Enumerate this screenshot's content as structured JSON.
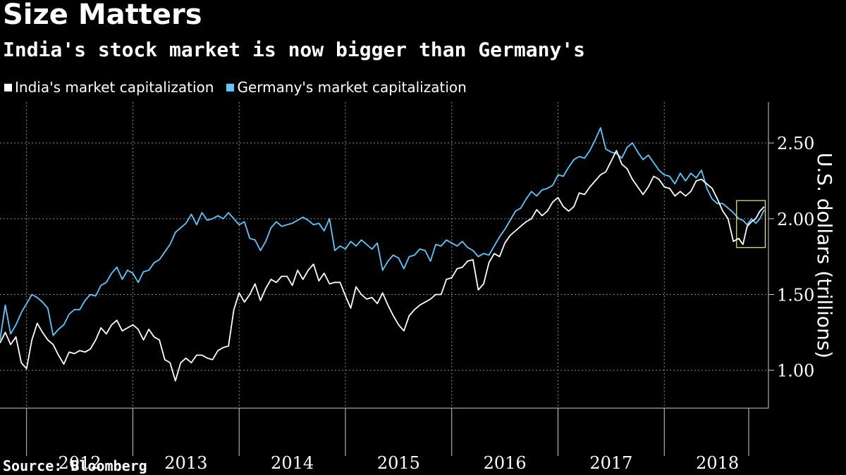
{
  "chart_data": {
    "type": "line",
    "title": "Size Matters",
    "subtitle": "India's stock market is now bigger than Germany's",
    "ylabel": "U.S. dollars (trillions)",
    "xlabel": "",
    "source": "Source: Bloomberg",
    "x_tick_labels": [
      "2012",
      "2013",
      "2014",
      "2015",
      "2016",
      "2017",
      "2018"
    ],
    "y_ticks": [
      1.0,
      1.5,
      2.0,
      2.5
    ],
    "y_tick_labels": [
      "1.00",
      "1.50",
      "2.00",
      "2.50"
    ],
    "ylim": [
      0.75,
      2.77
    ],
    "xlim": [
      2011.75,
      2018.98
    ],
    "grid": true,
    "legend_position": "top-left",
    "highlight_box": {
      "x": [
        2018.68,
        2018.95
      ],
      "y": [
        1.81,
        2.12
      ],
      "color": "#f1f08a"
    },
    "series": [
      {
        "name": "India's market capitalization",
        "color": "#ffffff",
        "x": [
          2011.75,
          2011.8,
          2011.85,
          2011.9,
          2011.95,
          2012.0,
          2012.05,
          2012.1,
          2012.15,
          2012.2,
          2012.25,
          2012.3,
          2012.35,
          2012.4,
          2012.45,
          2012.5,
          2012.55,
          2012.6,
          2012.65,
          2012.7,
          2012.75,
          2012.8,
          2012.85,
          2012.9,
          2012.95,
          2013.0,
          2013.05,
          2013.1,
          2013.15,
          2013.2,
          2013.25,
          2013.3,
          2013.35,
          2013.4,
          2013.45,
          2013.5,
          2013.55,
          2013.6,
          2013.65,
          2013.7,
          2013.75,
          2013.8,
          2013.85,
          2013.9,
          2013.95,
          2014.0,
          2014.05,
          2014.1,
          2014.15,
          2014.2,
          2014.25,
          2014.3,
          2014.35,
          2014.4,
          2014.45,
          2014.5,
          2014.55,
          2014.6,
          2014.65,
          2014.7,
          2014.75,
          2014.8,
          2014.85,
          2014.9,
          2014.95,
          2015.0,
          2015.05,
          2015.1,
          2015.15,
          2015.2,
          2015.25,
          2015.3,
          2015.35,
          2015.4,
          2015.45,
          2015.5,
          2015.55,
          2015.6,
          2015.65,
          2015.7,
          2015.75,
          2015.8,
          2015.85,
          2015.9,
          2015.95,
          2016.0,
          2016.05,
          2016.1,
          2016.15,
          2016.2,
          2016.25,
          2016.3,
          2016.35,
          2016.4,
          2016.45,
          2016.5,
          2016.55,
          2016.6,
          2016.65,
          2016.7,
          2016.75,
          2016.8,
          2016.85,
          2016.9,
          2016.95,
          2017.0,
          2017.05,
          2017.1,
          2017.15,
          2017.2,
          2017.25,
          2017.3,
          2017.35,
          2017.4,
          2017.45,
          2017.5,
          2017.55,
          2017.6,
          2017.65,
          2017.7,
          2017.75,
          2017.8,
          2017.85,
          2017.9,
          2017.95,
          2018.0,
          2018.05,
          2018.1,
          2018.15,
          2018.2,
          2018.25,
          2018.3,
          2018.35,
          2018.4,
          2018.45,
          2018.5,
          2018.55,
          2018.6,
          2018.65,
          2018.7,
          2018.74,
          2018.78,
          2018.82,
          2018.86,
          2018.9,
          2018.94
        ],
        "values": [
          1.18,
          1.25,
          1.17,
          1.22,
          1.05,
          1.01,
          1.2,
          1.31,
          1.25,
          1.2,
          1.17,
          1.1,
          1.04,
          1.12,
          1.11,
          1.13,
          1.12,
          1.14,
          1.2,
          1.28,
          1.24,
          1.3,
          1.33,
          1.26,
          1.28,
          1.3,
          1.27,
          1.2,
          1.27,
          1.22,
          1.2,
          1.07,
          1.05,
          0.93,
          1.05,
          1.08,
          1.05,
          1.1,
          1.1,
          1.08,
          1.07,
          1.13,
          1.15,
          1.16,
          1.4,
          1.51,
          1.45,
          1.5,
          1.57,
          1.46,
          1.54,
          1.6,
          1.58,
          1.62,
          1.62,
          1.56,
          1.66,
          1.6,
          1.66,
          1.7,
          1.59,
          1.64,
          1.57,
          1.58,
          1.58,
          1.49,
          1.41,
          1.55,
          1.5,
          1.47,
          1.48,
          1.44,
          1.51,
          1.43,
          1.36,
          1.3,
          1.26,
          1.36,
          1.4,
          1.43,
          1.45,
          1.47,
          1.5,
          1.5,
          1.6,
          1.61,
          1.67,
          1.68,
          1.72,
          1.73,
          1.53,
          1.57,
          1.71,
          1.77,
          1.75,
          1.84,
          1.89,
          1.92,
          1.95,
          1.98,
          2.0,
          2.06,
          2.02,
          2.05,
          2.11,
          2.14,
          2.08,
          2.05,
          2.08,
          2.17,
          2.16,
          2.21,
          2.25,
          2.29,
          2.31,
          2.38,
          2.45,
          2.36,
          2.33,
          2.26,
          2.21,
          2.16,
          2.21,
          2.28,
          2.26,
          2.21,
          2.2,
          2.15,
          2.18,
          2.15,
          2.18,
          2.25,
          2.26,
          2.23,
          2.2,
          2.13,
          2.05,
          2.0,
          1.85,
          1.87,
          1.83,
          1.95,
          1.98,
          2.0,
          2.05,
          2.08
        ]
      },
      {
        "name": "Germany's market capitalization",
        "color": "#5bc8ff",
        "x": [
          2011.75,
          2011.8,
          2011.85,
          2011.9,
          2011.95,
          2012.0,
          2012.05,
          2012.1,
          2012.15,
          2012.2,
          2012.25,
          2012.3,
          2012.35,
          2012.4,
          2012.45,
          2012.5,
          2012.55,
          2012.6,
          2012.65,
          2012.7,
          2012.75,
          2012.8,
          2012.85,
          2012.9,
          2012.95,
          2013.0,
          2013.05,
          2013.1,
          2013.15,
          2013.2,
          2013.25,
          2013.3,
          2013.35,
          2013.4,
          2013.45,
          2013.5,
          2013.55,
          2013.6,
          2013.65,
          2013.7,
          2013.75,
          2013.8,
          2013.85,
          2013.9,
          2013.95,
          2014.0,
          2014.05,
          2014.1,
          2014.15,
          2014.2,
          2014.25,
          2014.3,
          2014.35,
          2014.4,
          2014.45,
          2014.5,
          2014.55,
          2014.6,
          2014.65,
          2014.7,
          2014.75,
          2014.8,
          2014.85,
          2014.9,
          2014.95,
          2015.0,
          2015.05,
          2015.1,
          2015.15,
          2015.2,
          2015.25,
          2015.3,
          2015.35,
          2015.4,
          2015.45,
          2015.5,
          2015.55,
          2015.6,
          2015.65,
          2015.7,
          2015.75,
          2015.8,
          2015.85,
          2015.9,
          2015.95,
          2016.0,
          2016.05,
          2016.1,
          2016.15,
          2016.2,
          2016.25,
          2016.3,
          2016.35,
          2016.4,
          2016.45,
          2016.5,
          2016.55,
          2016.6,
          2016.65,
          2016.7,
          2016.75,
          2016.8,
          2016.85,
          2016.9,
          2016.95,
          2017.0,
          2017.05,
          2017.1,
          2017.15,
          2017.2,
          2017.25,
          2017.3,
          2017.35,
          2017.4,
          2017.45,
          2017.5,
          2017.55,
          2017.6,
          2017.65,
          2017.7,
          2017.75,
          2017.8,
          2017.85,
          2017.9,
          2017.95,
          2018.0,
          2018.05,
          2018.1,
          2018.15,
          2018.2,
          2018.25,
          2018.3,
          2018.35,
          2018.4,
          2018.45,
          2018.5,
          2018.55,
          2018.6,
          2018.65,
          2018.7,
          2018.74,
          2018.78,
          2018.82,
          2018.86,
          2018.9,
          2018.94
        ],
        "values": [
          1.2,
          1.43,
          1.24,
          1.3,
          1.38,
          1.44,
          1.5,
          1.48,
          1.45,
          1.41,
          1.23,
          1.27,
          1.3,
          1.37,
          1.4,
          1.4,
          1.46,
          1.5,
          1.49,
          1.56,
          1.58,
          1.64,
          1.68,
          1.6,
          1.66,
          1.64,
          1.58,
          1.65,
          1.66,
          1.71,
          1.73,
          1.78,
          1.83,
          1.91,
          1.94,
          1.97,
          2.03,
          1.96,
          2.04,
          1.99,
          2.0,
          2.02,
          2.0,
          2.04,
          2.0,
          1.96,
          1.98,
          1.87,
          1.86,
          1.79,
          1.85,
          1.94,
          1.98,
          1.95,
          1.96,
          1.97,
          1.99,
          2.01,
          1.99,
          1.96,
          1.97,
          1.92,
          2.0,
          1.79,
          1.82,
          1.8,
          1.85,
          1.82,
          1.86,
          1.83,
          1.8,
          1.84,
          1.66,
          1.72,
          1.76,
          1.74,
          1.67,
          1.75,
          1.76,
          1.8,
          1.79,
          1.72,
          1.83,
          1.82,
          1.86,
          1.84,
          1.82,
          1.85,
          1.81,
          1.79,
          1.75,
          1.77,
          1.76,
          1.82,
          1.88,
          1.93,
          1.99,
          2.05,
          2.07,
          2.13,
          2.18,
          2.15,
          2.19,
          2.2,
          2.22,
          2.29,
          2.28,
          2.34,
          2.39,
          2.41,
          2.4,
          2.45,
          2.52,
          2.6,
          2.46,
          2.44,
          2.43,
          2.4,
          2.47,
          2.5,
          2.44,
          2.39,
          2.42,
          2.37,
          2.32,
          2.29,
          2.28,
          2.23,
          2.3,
          2.25,
          2.3,
          2.27,
          2.32,
          2.2,
          2.13,
          2.1,
          2.1,
          2.07,
          2.04,
          2.0,
          1.99,
          1.96,
          2.0,
          1.97,
          2.0,
          2.06
        ]
      }
    ]
  }
}
